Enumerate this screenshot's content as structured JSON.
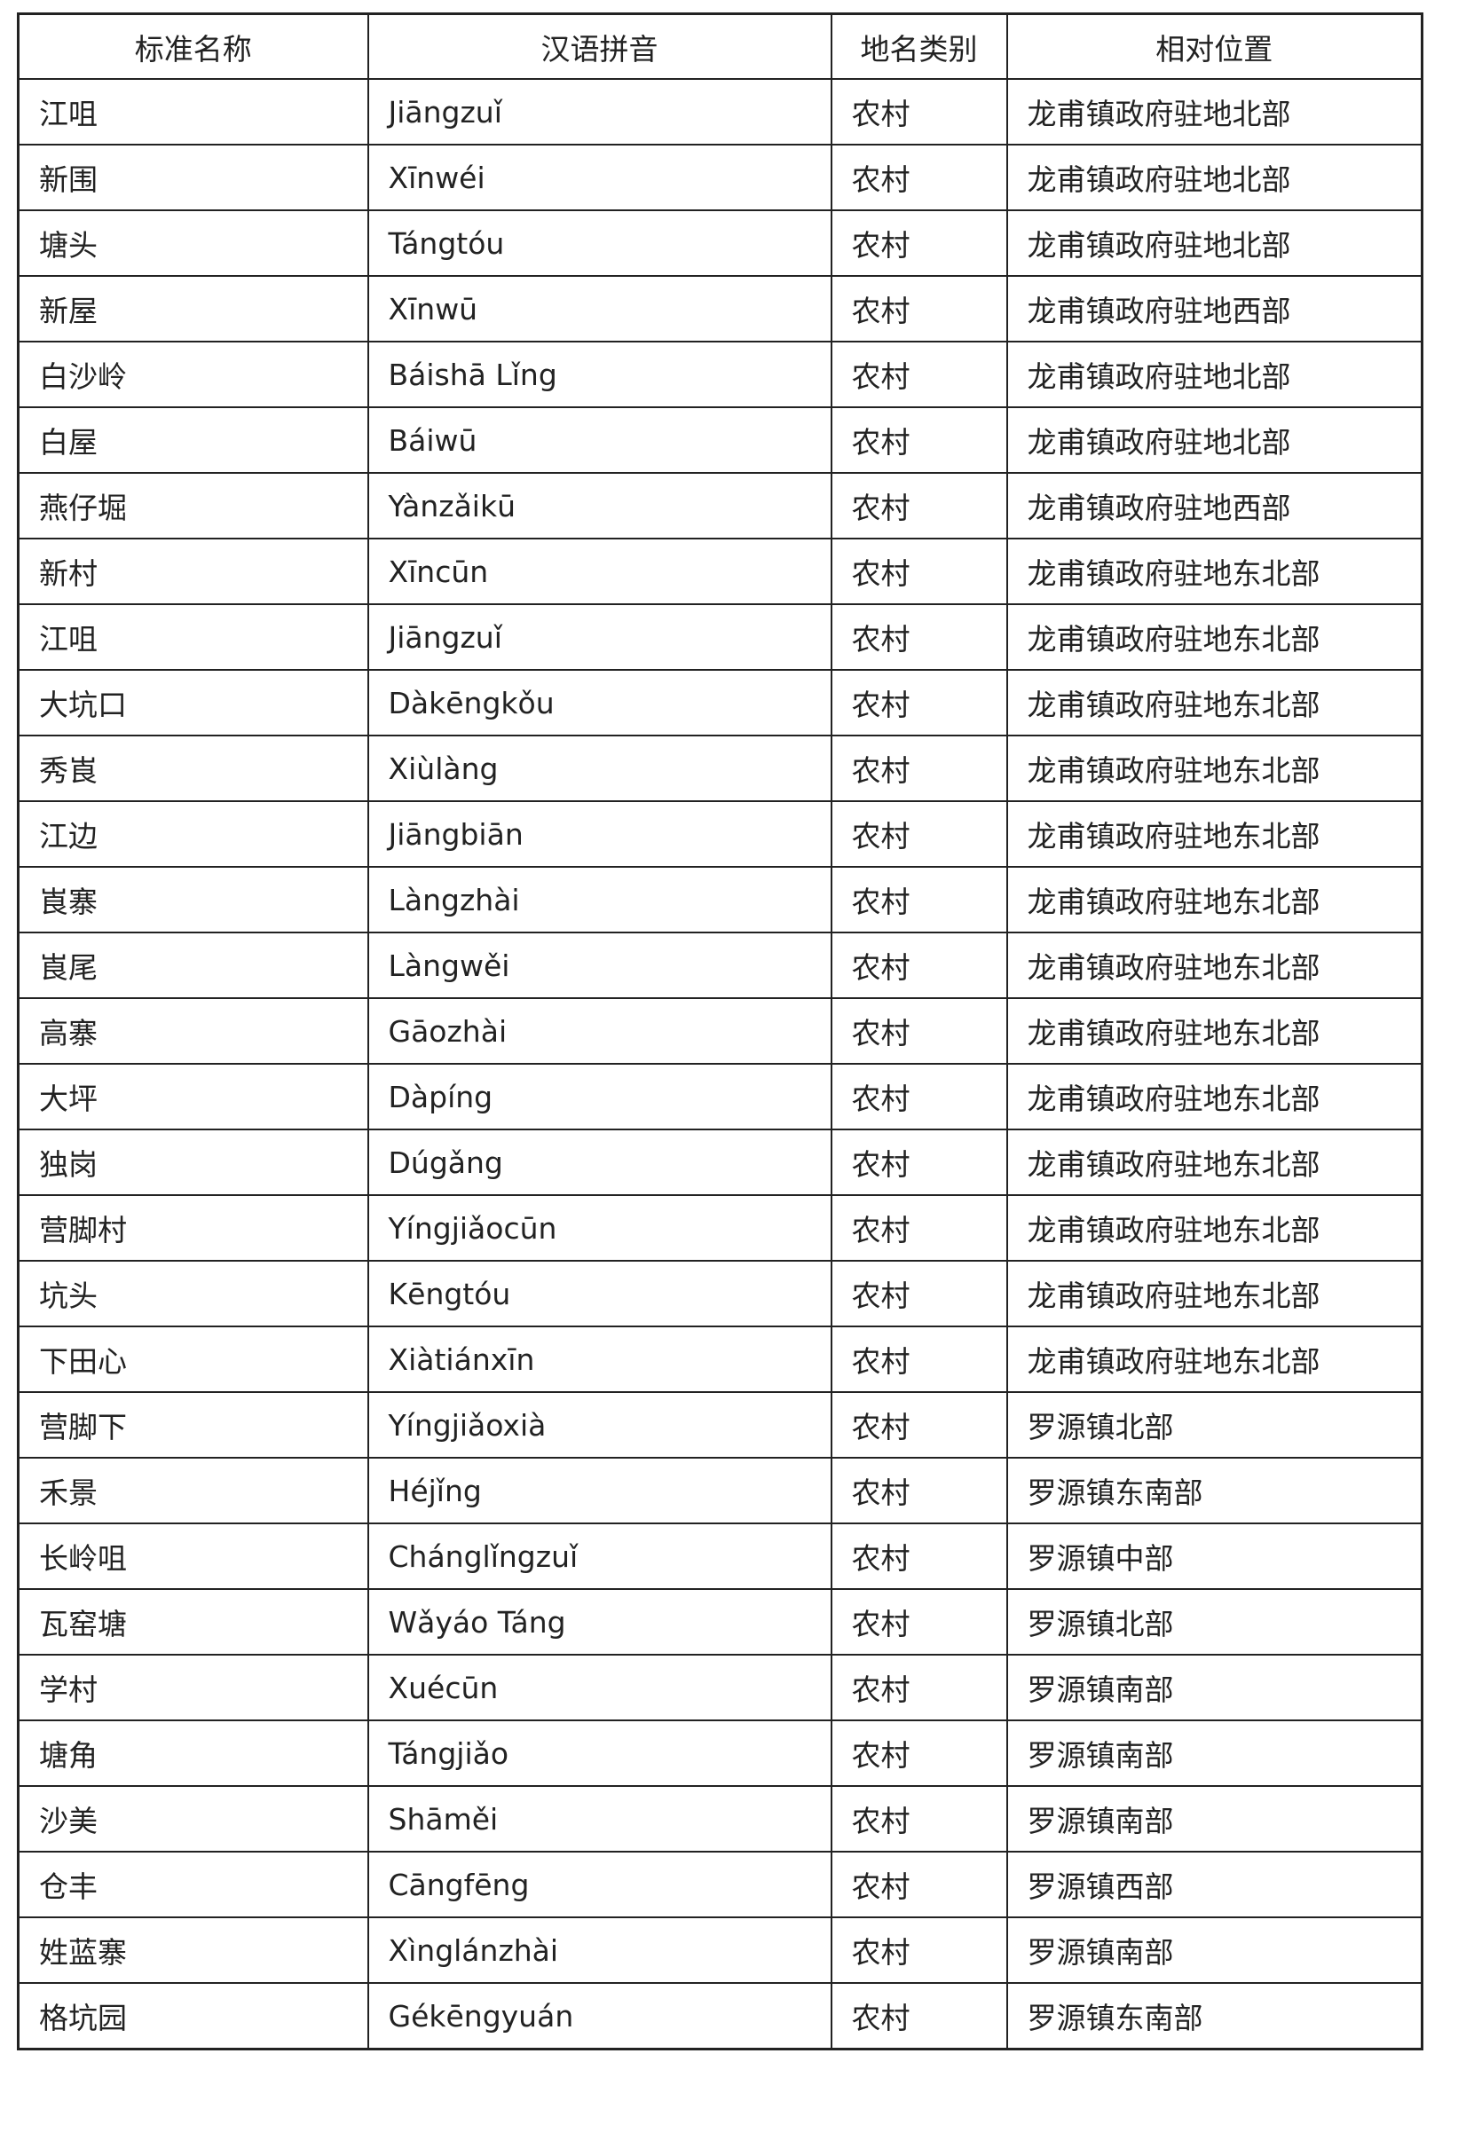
{
  "headers": [
    "标准名称",
    "汉语拼音",
    "地名类别",
    "相对位置"
  ],
  "rows": [
    [
      "江咀",
      "Jiāngzuǐ",
      "农村",
      "龙甫镇政府驻地北部"
    ],
    [
      "新围",
      "Xīnwéi",
      "农村",
      "龙甫镇政府驻地北部"
    ],
    [
      "塘头",
      "Tángtóu",
      "农村",
      "龙甫镇政府驻地北部"
    ],
    [
      "新屋",
      "Xīnwū",
      "农村",
      "龙甫镇政府驻地西部"
    ],
    [
      "白沙岭",
      "Báishā Lǐng",
      "农村",
      "龙甫镇政府驻地北部"
    ],
    [
      "白屋",
      "Báiwū",
      "农村",
      "龙甫镇政府驻地北部"
    ],
    [
      "燕仔堀",
      "Yànzǎikū",
      "农村",
      "龙甫镇政府驻地西部"
    ],
    [
      "新村",
      "Xīncūn",
      "农村",
      "龙甫镇政府驻地东北部"
    ],
    [
      "江咀",
      "Jiāngzuǐ",
      "农村",
      "龙甫镇政府驻地东北部"
    ],
    [
      "大坑口",
      "Dàkēngkǒu",
      "农村",
      "龙甫镇政府驻地东北部"
    ],
    [
      "秀崀",
      "Xiùlàng",
      "农村",
      "龙甫镇政府驻地东北部"
    ],
    [
      "江边",
      "Jiāngbiān",
      "农村",
      "龙甫镇政府驻地东北部"
    ],
    [
      "崀寨",
      "Làngzhài",
      "农村",
      "龙甫镇政府驻地东北部"
    ],
    [
      "崀尾",
      "Làngwěi",
      "农村",
      "龙甫镇政府驻地东北部"
    ],
    [
      "高寨",
      "Gāozhài",
      "农村",
      "龙甫镇政府驻地东北部"
    ],
    [
      "大坪",
      "Dàpíng",
      "农村",
      "龙甫镇政府驻地东北部"
    ],
    [
      "独岗",
      "Dúgǎng",
      "农村",
      "龙甫镇政府驻地东北部"
    ],
    [
      "营脚村",
      "Yíngjiǎocūn",
      "农村",
      "龙甫镇政府驻地东北部"
    ],
    [
      "坑头",
      "Kēngtóu",
      "农村",
      "龙甫镇政府驻地东北部"
    ],
    [
      "下田心",
      "Xiàtiánxīn",
      "农村",
      "龙甫镇政府驻地东北部"
    ],
    [
      "营脚下",
      "Yíngjiǎoxià",
      "农村",
      "罗源镇北部"
    ],
    [
      "禾景",
      "Héjǐng",
      "农村",
      "罗源镇东南部"
    ],
    [
      "长岭咀",
      "Chánglǐngzuǐ",
      "农村",
      "罗源镇中部"
    ],
    [
      "瓦窑塘",
      "Wǎyáo Táng",
      "农村",
      "罗源镇北部"
    ],
    [
      "学村",
      "Xuécūn",
      "农村",
      "罗源镇南部"
    ],
    [
      "塘角",
      "Tángjiǎo",
      "农村",
      "罗源镇南部"
    ],
    [
      "沙美",
      "Shāměi",
      "农村",
      "罗源镇南部"
    ],
    [
      "仓丰",
      "Cāngfēng",
      "农村",
      "罗源镇西部"
    ],
    [
      "姓蓝寨",
      "Xìnglánzhài",
      "农村",
      "罗源镇南部"
    ],
    [
      "格坑园",
      "Gékēngyuán",
      "农村",
      "罗源镇东南部"
    ]
  ]
}
